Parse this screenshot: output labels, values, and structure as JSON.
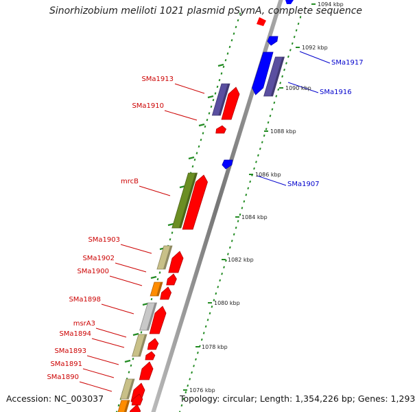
{
  "title": "Sinorhizobium meliloti 1021 plasmid pSymA, complete sequence",
  "accession": "Accession: NC_003037",
  "topology": "Topology: circular; Length: 1,354,226 bp; Genes: 1,293",
  "colors": {
    "forward_label": "#cc0000",
    "reverse_label": "#0000cc",
    "forward_gene": "#ff0000",
    "reverse_gene": "#0000ff",
    "purple_feature": "#5a4fa0",
    "green_feature": "#6b8e23",
    "khaki_feature": "#c8c088",
    "orange_feature": "#ff8c00",
    "grey_feature": "#c8c8c8",
    "backbone": "#888888",
    "tick": "#228b22"
  },
  "gene_labels": {
    "left": [
      "SMa1913",
      "SMa1910",
      "mrcB",
      "SMa1903",
      "SMa1902",
      "SMa1900",
      "SMa1898",
      "msrA3",
      "SMa1894",
      "SMa1893",
      "SMa1891",
      "SMa1890"
    ],
    "right": [
      "SMa1917",
      "SMa1916",
      "SMa1907"
    ]
  },
  "kbp_labels": [
    "1094 kbp",
    "1092 kbp",
    "1090 kbp",
    "1088 kbp",
    "1086 kbp",
    "1084 kbp",
    "1082 kbp",
    "1080 kbp",
    "1078 kbp",
    "1076 kbp"
  ]
}
